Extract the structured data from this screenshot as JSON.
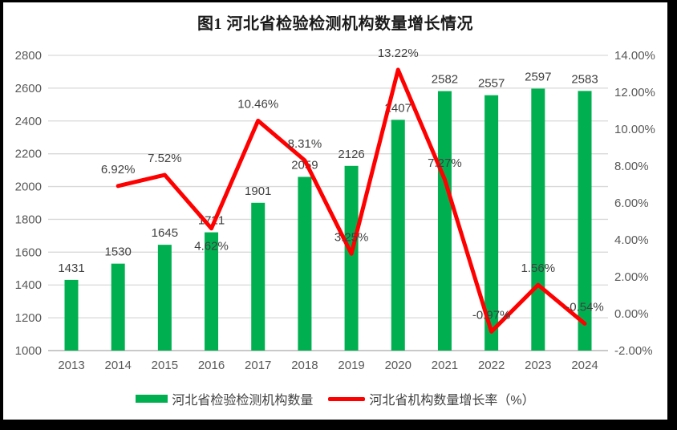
{
  "window": {
    "background": "#000000",
    "card_background": "#ffffff"
  },
  "chart_data": {
    "type": "combo-bar-line",
    "title": "图1 河北省检验检测机构数量增长情况",
    "categories": [
      "2013",
      "2014",
      "2015",
      "2016",
      "2017",
      "2018",
      "2019",
      "2020",
      "2021",
      "2022",
      "2023",
      "2024"
    ],
    "series": [
      {
        "name": "河北省检验检测机构数量",
        "type": "bar",
        "axis": "left",
        "color": "#00B050",
        "values": [
          1431,
          1530,
          1645,
          1721,
          1901,
          2059,
          2126,
          2407,
          2582,
          2557,
          2597,
          2583
        ],
        "data_labels": [
          "1431",
          "1530",
          "1645",
          "1721",
          "1901",
          "2059",
          "2126",
          "2407",
          "2582",
          "2557",
          "2597",
          "2583"
        ]
      },
      {
        "name": "河北省机构数量增长率（%）",
        "type": "line",
        "axis": "right",
        "color": "#FF0000",
        "values": [
          null,
          6.92,
          7.52,
          4.62,
          10.46,
          8.31,
          3.25,
          13.22,
          7.27,
          -0.97,
          1.56,
          -0.54
        ],
        "data_labels": [
          null,
          "6.92%",
          "7.52%",
          "4.62%",
          "10.46%",
          "8.31%",
          "3.25%",
          "13.22%",
          "7.27%",
          "-0.97%",
          "1.56%",
          "-0.54%"
        ],
        "label_placement": [
          null,
          "above",
          "above",
          "below",
          "above",
          "above",
          "above",
          "above",
          "above",
          "above",
          "above",
          "above"
        ]
      }
    ],
    "left_axis": {
      "min": 1000,
      "max": 2800,
      "step": 200,
      "tick_labels": [
        "1000",
        "1200",
        "1400",
        "1600",
        "1800",
        "2000",
        "2200",
        "2400",
        "2600",
        "2800"
      ]
    },
    "right_axis": {
      "min": -2,
      "max": 14,
      "step": 2,
      "tick_labels": [
        "-2.00%",
        "0.00%",
        "2.00%",
        "4.00%",
        "6.00%",
        "8.00%",
        "10.00%",
        "12.00%",
        "14.00%"
      ]
    },
    "grid": true,
    "legend_position": "bottom",
    "styles": {
      "grid_color": "#D9D9D9",
      "axis_line_color": "#C9C9C9",
      "tick_color": "#595959",
      "label_color": "#404040",
      "title_color": "#1a1a1a"
    }
  }
}
